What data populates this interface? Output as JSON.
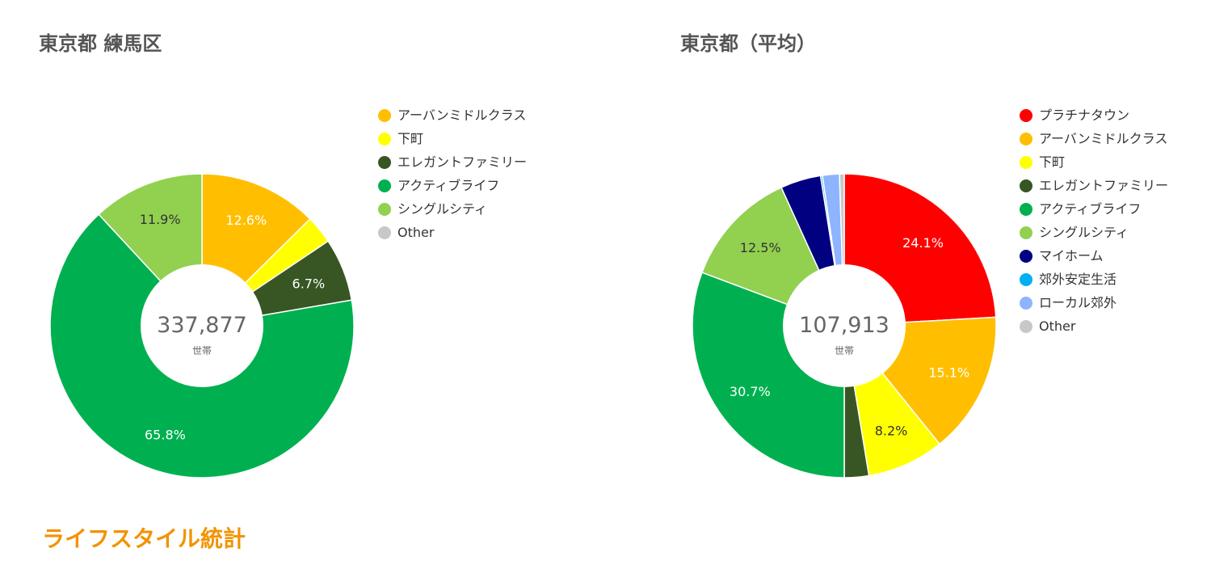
{
  "section_heading": "ライフスタイル統計",
  "chart_data": [
    {
      "type": "pie",
      "title": "東京都 練馬区",
      "center_value": "337,877",
      "center_unit": "世帯",
      "legend": [
        {
          "label": "アーバンミドルクラス",
          "color": "#ffbf00"
        },
        {
          "label": "下町",
          "color": "#ffff00"
        },
        {
          "label": "エレガントファミリー",
          "color": "#375623"
        },
        {
          "label": "アクティブライフ",
          "color": "#00b050"
        },
        {
          "label": "シングルシティ",
          "color": "#92d050"
        },
        {
          "label": "Other",
          "color": "#c8c8c8"
        }
      ],
      "slices": [
        {
          "series": "アーバンミドルクラス",
          "value": 12.6,
          "label": "12.6%",
          "color": "#ffbf00",
          "label_color": "#ffffff"
        },
        {
          "series": "下町",
          "value": 3.0,
          "label": "",
          "color": "#ffff00",
          "label_color": "#333333"
        },
        {
          "series": "エレガントファミリー",
          "value": 6.7,
          "label": "6.7%",
          "color": "#375623",
          "label_color": "#ffffff"
        },
        {
          "series": "アクティブライフ",
          "value": 65.8,
          "label": "65.8%",
          "color": "#00b050",
          "label_color": "#ffffff"
        },
        {
          "series": "シングルシティ",
          "value": 11.9,
          "label": "11.9%",
          "color": "#92d050",
          "label_color": "#333333"
        }
      ]
    },
    {
      "type": "pie",
      "title": "東京都（平均）",
      "center_value": "107,913",
      "center_unit": "世帯",
      "legend": [
        {
          "label": "プラチナタウン",
          "color": "#ff0000"
        },
        {
          "label": "アーバンミドルクラス",
          "color": "#ffbf00"
        },
        {
          "label": "下町",
          "color": "#ffff00"
        },
        {
          "label": "エレガントファミリー",
          "color": "#375623"
        },
        {
          "label": "アクティブライフ",
          "color": "#00b050"
        },
        {
          "label": "シングルシティ",
          "color": "#92d050"
        },
        {
          "label": "マイホーム",
          "color": "#000080"
        },
        {
          "label": "郊外安定生活",
          "color": "#00b0f0"
        },
        {
          "label": "ローカル郊外",
          "color": "#8eb4ff"
        },
        {
          "label": "Other",
          "color": "#c8c8c8"
        }
      ],
      "slices": [
        {
          "series": "プラチナタウン",
          "value": 24.1,
          "label": "24.1%",
          "color": "#ff0000",
          "label_color": "#ffffff"
        },
        {
          "series": "アーバンミドルクラス",
          "value": 15.1,
          "label": "15.1%",
          "color": "#ffbf00",
          "label_color": "#ffffff"
        },
        {
          "series": "下町",
          "value": 8.2,
          "label": "8.2%",
          "color": "#ffff00",
          "label_color": "#333333"
        },
        {
          "series": "エレガントファミリー",
          "value": 2.6,
          "label": "",
          "color": "#375623",
          "label_color": "#ffffff"
        },
        {
          "series": "アクティブライフ",
          "value": 30.7,
          "label": "30.7%",
          "color": "#00b050",
          "label_color": "#ffffff"
        },
        {
          "series": "シングルシティ",
          "value": 12.5,
          "label": "12.5%",
          "color": "#92d050",
          "label_color": "#333333"
        },
        {
          "series": "マイホーム",
          "value": 4.3,
          "label": "",
          "color": "#000080",
          "label_color": "#ffffff"
        },
        {
          "series": "郊外安定生活",
          "value": 0.2,
          "label": "",
          "color": "#00b0f0",
          "label_color": "#ffffff"
        },
        {
          "series": "ローカル郊外",
          "value": 1.8,
          "label": "",
          "color": "#8eb4ff",
          "label_color": "#ffffff"
        },
        {
          "series": "Other",
          "value": 0.5,
          "label": "",
          "color": "#c8c8c8",
          "label_color": "#333333"
        }
      ]
    }
  ]
}
